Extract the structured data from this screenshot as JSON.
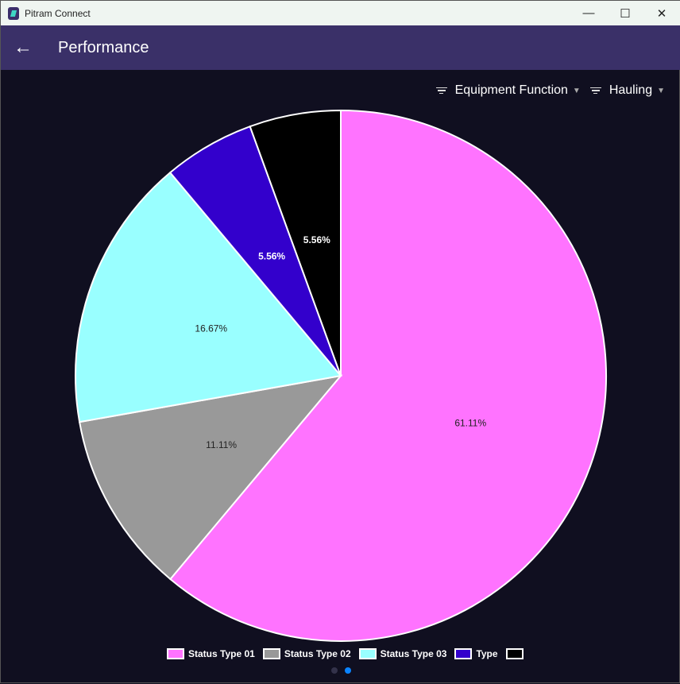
{
  "window": {
    "title": "Pitram Connect",
    "minimize": "—",
    "maximize": "☐",
    "close": "✕"
  },
  "header": {
    "back_icon": "arrow-left",
    "title": "Performance"
  },
  "filters": [
    {
      "label": "Equipment Function",
      "icon": "filter-icon"
    },
    {
      "label": "Hauling",
      "icon": "filter-icon"
    }
  ],
  "chart_data": {
    "type": "pie",
    "start": "top",
    "direction": "clockwise",
    "slices": [
      {
        "name": "Status Type 01",
        "value": 61.11,
        "label": "61.11%",
        "color": "#ff73ff",
        "label_color": "#222222"
      },
      {
        "name": "Status Type 02",
        "value": 11.11,
        "label": "11.11%",
        "color": "#999999",
        "label_color": "#222222"
      },
      {
        "name": "Status Type 03",
        "value": 16.67,
        "label": "16.67%",
        "color": "#99ffff",
        "label_color": "#222222"
      },
      {
        "name": "Type",
        "value": 5.56,
        "label": "5.56%",
        "color": "#3300cc",
        "label_color": "#ffffff"
      },
      {
        "name": "",
        "value": 5.56,
        "label": "5.56%",
        "color": "#000000",
        "label_color": "#ffffff"
      }
    ],
    "legend": "bottom"
  },
  "pager": {
    "pages": 2,
    "active": 2,
    "active_color": "#0a84ff"
  }
}
